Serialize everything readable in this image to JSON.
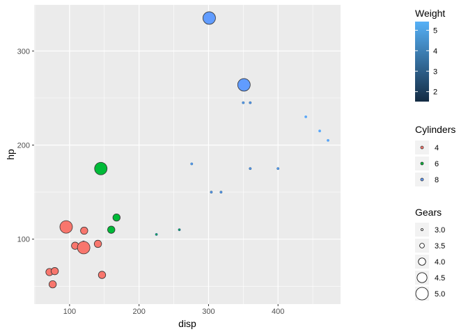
{
  "chart_data": {
    "type": "scatter",
    "xlabel": "disp",
    "ylabel": "hp",
    "xlim": [
      49,
      490
    ],
    "ylim": [
      31,
      349
    ],
    "x_ticks": [
      100,
      200,
      300,
      400
    ],
    "y_ticks": [
      100,
      200,
      300
    ],
    "grid": true,
    "legend_placement": "right",
    "colors": {
      "panel_bg": "#EBEBEB",
      "grid": "#FFFFFF",
      "cyl4": "#F8766D",
      "cyl6": "#00BA38",
      "cyl8": "#619CFF",
      "weight_low": "#132B43",
      "weight_high": "#56B1F7"
    },
    "points": [
      {
        "disp": 71.1,
        "hp": 65,
        "cyl": 4,
        "gear": 4,
        "wt": 1.835
      },
      {
        "disp": 75.7,
        "hp": 52,
        "cyl": 4,
        "gear": 4,
        "wt": 1.615
      },
      {
        "disp": 78.7,
        "hp": 66,
        "cyl": 4,
        "gear": 4,
        "wt": 2.2
      },
      {
        "disp": 95.1,
        "hp": 113,
        "cyl": 4,
        "gear": 5,
        "wt": 1.513
      },
      {
        "disp": 108.0,
        "hp": 93,
        "cyl": 4,
        "gear": 4,
        "wt": 2.32
      },
      {
        "disp": 120.1,
        "hp": 97,
        "cyl": 4,
        "gear": 3,
        "wt": 2.465
      },
      {
        "disp": 120.3,
        "hp": 91,
        "cyl": 4,
        "gear": 5,
        "wt": 2.14
      },
      {
        "disp": 121.0,
        "hp": 109,
        "cyl": 4,
        "gear": 4,
        "wt": 2.78
      },
      {
        "disp": 140.8,
        "hp": 95,
        "cyl": 4,
        "gear": 4,
        "wt": 3.15
      },
      {
        "disp": 146.7,
        "hp": 62,
        "cyl": 4,
        "gear": 4,
        "wt": 3.19
      },
      {
        "disp": 145.0,
        "hp": 175,
        "cyl": 6,
        "gear": 5,
        "wt": 2.77
      },
      {
        "disp": 160.0,
        "hp": 110,
        "cyl": 6,
        "gear": 4,
        "wt": 2.62
      },
      {
        "disp": 167.6,
        "hp": 123,
        "cyl": 6,
        "gear": 4,
        "wt": 3.44
      },
      {
        "disp": 225.0,
        "hp": 105,
        "cyl": 6,
        "gear": 3,
        "wt": 3.46
      },
      {
        "disp": 258.0,
        "hp": 110,
        "cyl": 6,
        "gear": 3,
        "wt": 3.215
      },
      {
        "disp": 275.8,
        "hp": 180,
        "cyl": 8,
        "gear": 3,
        "wt": 4.07
      },
      {
        "disp": 301.0,
        "hp": 335,
        "cyl": 8,
        "gear": 5,
        "wt": 3.57
      },
      {
        "disp": 304.0,
        "hp": 150,
        "cyl": 8,
        "gear": 3,
        "wt": 3.435
      },
      {
        "disp": 318.0,
        "hp": 150,
        "cyl": 8,
        "gear": 3,
        "wt": 3.52
      },
      {
        "disp": 350.0,
        "hp": 245,
        "cyl": 8,
        "gear": 3,
        "wt": 3.84
      },
      {
        "disp": 351.0,
        "hp": 264,
        "cyl": 8,
        "gear": 5,
        "wt": 3.17
      },
      {
        "disp": 360.0,
        "hp": 175,
        "cyl": 8,
        "gear": 3,
        "wt": 3.44
      },
      {
        "disp": 360.0,
        "hp": 245,
        "cyl": 8,
        "gear": 3,
        "wt": 3.57
      },
      {
        "disp": 400.0,
        "hp": 175,
        "cyl": 8,
        "gear": 3,
        "wt": 3.845
      },
      {
        "disp": 440.0,
        "hp": 230,
        "cyl": 8,
        "gear": 3,
        "wt": 5.345
      },
      {
        "disp": 460.0,
        "hp": 215,
        "cyl": 8,
        "gear": 3,
        "wt": 5.424
      },
      {
        "disp": 472.0,
        "hp": 205,
        "cyl": 8,
        "gear": 3,
        "wt": 5.25
      }
    ],
    "legends": {
      "weight": {
        "title": "Weight",
        "ticks": [
          "2",
          "3",
          "4",
          "5"
        ],
        "range": [
          1.513,
          5.424
        ]
      },
      "cylinders": {
        "title": "Cylinders",
        "entries": [
          {
            "label": "4",
            "color": "#F8766D"
          },
          {
            "label": "6",
            "color": "#00BA38"
          },
          {
            "label": "8",
            "color": "#619CFF"
          }
        ]
      },
      "gears": {
        "title": "Gears",
        "entries": [
          "3.0",
          "3.5",
          "4.0",
          "4.5",
          "5.0"
        ]
      }
    }
  }
}
